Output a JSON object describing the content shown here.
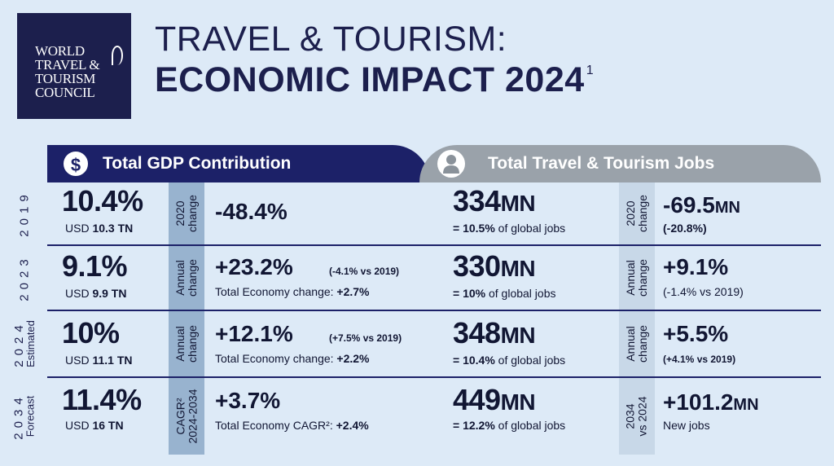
{
  "logo": [
    "WORLD",
    "TRAVEL &",
    "TOURISM",
    "COUNCIL"
  ],
  "title": {
    "line1": "TRAVEL & TOURISM:",
    "line2": "ECONOMIC IMPACT 2024",
    "footnote": "1"
  },
  "headers": {
    "gdp": {
      "icon": "$",
      "label": "Total GDP Contribution"
    },
    "jobs": {
      "label": "Total Travel & Tourism Jobs"
    }
  },
  "rows": [
    {
      "year": "2019",
      "year_sub": "",
      "gdp_pct": "10.4%",
      "gdp_usd_prefix": "USD ",
      "gdp_usd": "10.3 TN",
      "gdp_change_label": [
        "2020",
        "change"
      ],
      "gdp_change": "-48.4%",
      "gdp_change_note": "",
      "gdp_econ_label": "",
      "gdp_econ_value": "",
      "jobs": "334",
      "jobs_unit": "MN",
      "jobs_share_value": "= 10.5%",
      "jobs_share_text": " of global jobs",
      "jobs_change_label": [
        "2020",
        "change"
      ],
      "jobs_change": "-69.5",
      "jobs_change_unit": "MN",
      "jobs_change_note": "(-20.8%)"
    },
    {
      "year": "2023",
      "year_sub": "",
      "gdp_pct": "9.1%",
      "gdp_usd_prefix": "USD ",
      "gdp_usd": "9.9 TN",
      "gdp_change_label": [
        "Annual",
        "change"
      ],
      "gdp_change": "+23.2%",
      "gdp_change_note": "(-4.1% vs 2019)",
      "gdp_econ_label": "Total Economy change: ",
      "gdp_econ_value": "+2.7%",
      "jobs": "330",
      "jobs_unit": "MN",
      "jobs_share_value": "= 10%",
      "jobs_share_text": " of global jobs",
      "jobs_change_label": [
        "Annual",
        "change"
      ],
      "jobs_change": "+9.1%",
      "jobs_change_unit": "",
      "jobs_change_note": "(-1.4% vs 2019)"
    },
    {
      "year": "2024",
      "year_sub": "Estimated",
      "gdp_pct": "10%",
      "gdp_usd_prefix": "USD ",
      "gdp_usd": "11.1 TN",
      "gdp_change_label": [
        "Annual",
        "change"
      ],
      "gdp_change": "+12.1%",
      "gdp_change_note": "(+7.5% vs 2019)",
      "gdp_econ_label": "Total Economy change: ",
      "gdp_econ_value": "+2.2%",
      "jobs": "348",
      "jobs_unit": "MN",
      "jobs_share_value": "= 10.4%",
      "jobs_share_text": " of global jobs",
      "jobs_change_label": [
        "Annual",
        "change"
      ],
      "jobs_change": "+5.5%",
      "jobs_change_unit": "",
      "jobs_change_note": "(+4.1% vs 2019)"
    },
    {
      "year": "2034",
      "year_sub": "Forecast",
      "gdp_pct": "11.4%",
      "gdp_usd_prefix": "USD ",
      "gdp_usd": "16 TN",
      "gdp_change_label": [
        "CAGR²",
        "2024-2034"
      ],
      "gdp_change": "+3.7%",
      "gdp_change_note": "",
      "gdp_econ_label": "Total Economy CAGR²: ",
      "gdp_econ_value": "+2.4%",
      "jobs": "449",
      "jobs_unit": "MN",
      "jobs_share_value": "= 12.2%",
      "jobs_share_text": " of global jobs",
      "jobs_change_label": [
        "2034",
        "vs 2024"
      ],
      "jobs_change": "+101.2",
      "jobs_change_unit": "MN",
      "jobs_change_note": "New jobs"
    }
  ]
}
